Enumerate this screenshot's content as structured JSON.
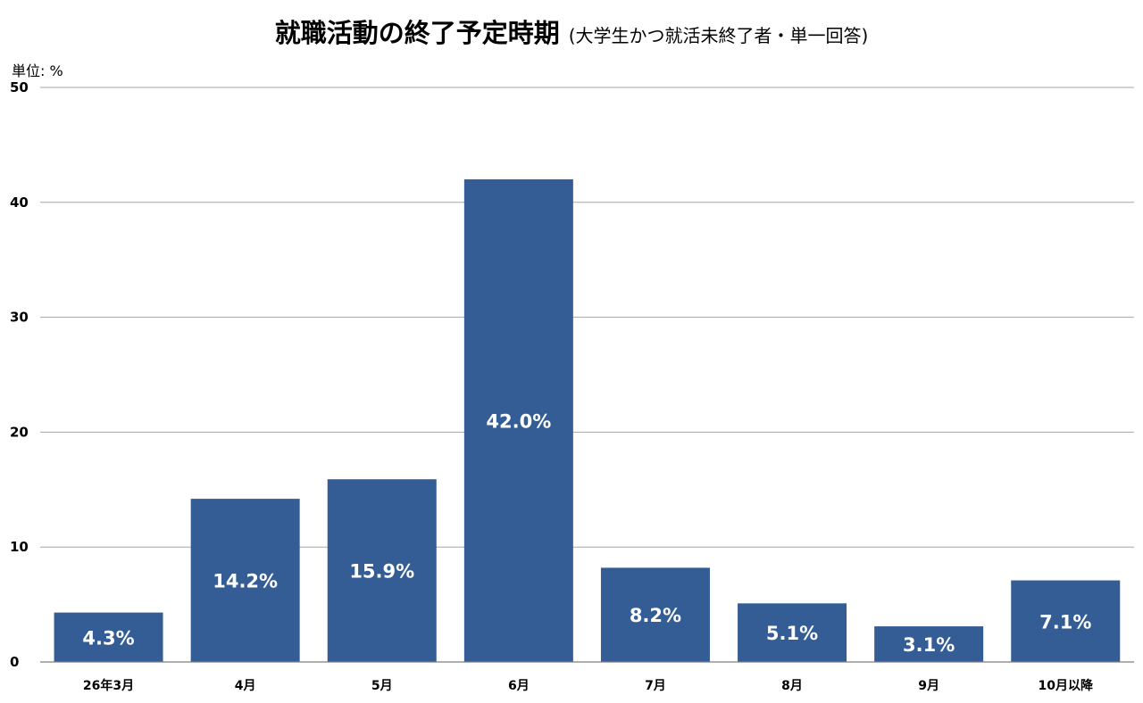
{
  "title": "就職活動の終了予定時期",
  "subtitle": "(大学生かつ就活未終了者・単一回答)",
  "unit_label": "単位: %",
  "chart_data": {
    "type": "bar",
    "title": "就職活動の終了予定時期",
    "subtitle": "(大学生かつ就活未終了者・単一回答)",
    "ylabel": "単位: %",
    "categories": [
      "26年3月",
      "4月",
      "5月",
      "6月",
      "7月",
      "8月",
      "9月",
      "10月以降"
    ],
    "values": [
      4.3,
      14.2,
      15.9,
      42.0,
      8.2,
      5.1,
      3.1,
      7.1
    ],
    "data_labels": [
      "4.3%",
      "14.2%",
      "15.9%",
      "42.0%",
      "8.2%",
      "5.1%",
      "3.1%",
      "7.1%"
    ],
    "ylim": [
      0,
      50
    ],
    "yticks": [
      0,
      10,
      20,
      30,
      40,
      50
    ],
    "grid": true,
    "legend": "none",
    "bar_color": "#345d95",
    "grid_color": "#a6a6a6"
  }
}
